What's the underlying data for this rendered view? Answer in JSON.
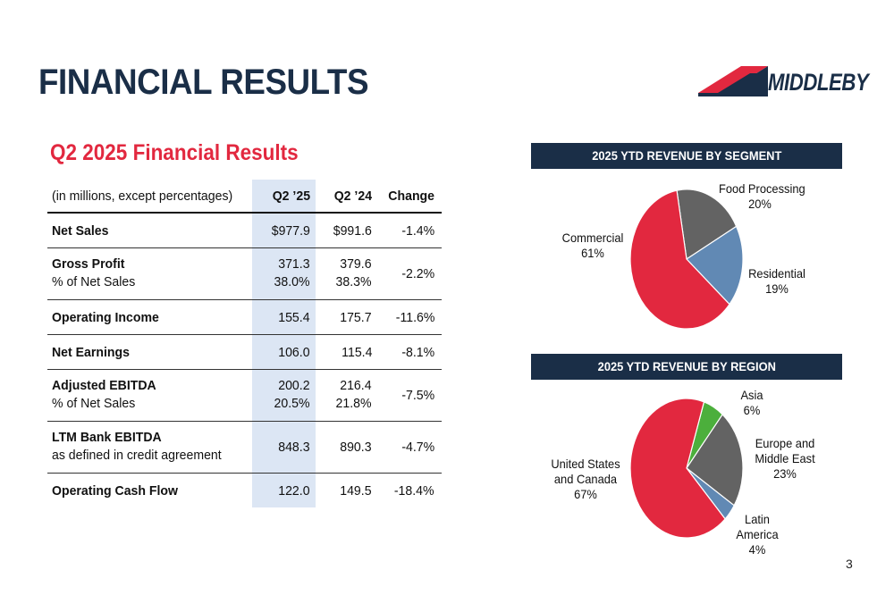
{
  "page": {
    "title": "FINANCIAL RESULTS",
    "logo_text": "MIDDLEBY",
    "page_number": "3",
    "colors": {
      "navy": "#1a2e47",
      "red": "#e2283f",
      "gray": "#636363",
      "blue": "#6189b4",
      "green": "#4caf3c",
      "shade": "#dce6f4"
    }
  },
  "table": {
    "title": "Q2 2025 Financial Results",
    "header": {
      "label": "(in millions, except percentages)",
      "c1": "Q2 ’25",
      "c2": "Q2 ’24",
      "c3": "Change"
    },
    "rows": [
      {
        "label": "Net Sales",
        "sub": "",
        "c1": "$977.9",
        "c1b": "",
        "c2": "$991.6",
        "c2b": "",
        "c3": "-1.4%"
      },
      {
        "label": "Gross Profit",
        "sub": "% of Net Sales",
        "c1": "371.3",
        "c1b": "38.0%",
        "c2": "379.6",
        "c2b": "38.3%",
        "c3": "-2.2%"
      },
      {
        "label": "Operating Income",
        "sub": "",
        "c1": "155.4",
        "c1b": "",
        "c2": "175.7",
        "c2b": "",
        "c3": "-11.6%"
      },
      {
        "label": "Net Earnings",
        "sub": "",
        "c1": "106.0",
        "c1b": "",
        "c2": "115.4",
        "c2b": "",
        "c3": "-8.1%"
      },
      {
        "label": "Adjusted EBITDA",
        "sub": "% of Net Sales",
        "c1": "200.2",
        "c1b": "20.5%",
        "c2": "216.4",
        "c2b": "21.8%",
        "c3": "-7.5%"
      },
      {
        "label": "LTM Bank EBITDA",
        "sub": "as defined in credit agreement",
        "c1": "848.3",
        "c1b": "",
        "c2": "890.3",
        "c2b": "",
        "c3": "-4.7%"
      },
      {
        "label": "Operating Cash Flow",
        "sub": "",
        "c1": "122.0",
        "c1b": "",
        "c2": "149.5",
        "c2b": "",
        "c3": "-18.4%"
      }
    ]
  },
  "chart_data": [
    {
      "type": "pie",
      "title": "2025 YTD REVENUE BY SEGMENT",
      "categories": [
        "Food Processing",
        "Residential",
        "Commercial"
      ],
      "values": [
        20,
        19,
        61
      ],
      "labels": [
        "20%",
        "19%",
        "61%"
      ],
      "colors": [
        "#636363",
        "#6189b4",
        "#e2283f"
      ]
    },
    {
      "type": "pie",
      "title": "2025 YTD REVENUE BY REGION",
      "categories": [
        "Asia",
        "Europe and Middle East",
        "Latin America",
        "United States and Canada"
      ],
      "values": [
        6,
        23,
        4,
        67
      ],
      "labels": [
        "6%",
        "23%",
        "4%",
        "67%"
      ],
      "colors": [
        "#4caf3c",
        "#636363",
        "#6189b4",
        "#e2283f"
      ]
    }
  ]
}
